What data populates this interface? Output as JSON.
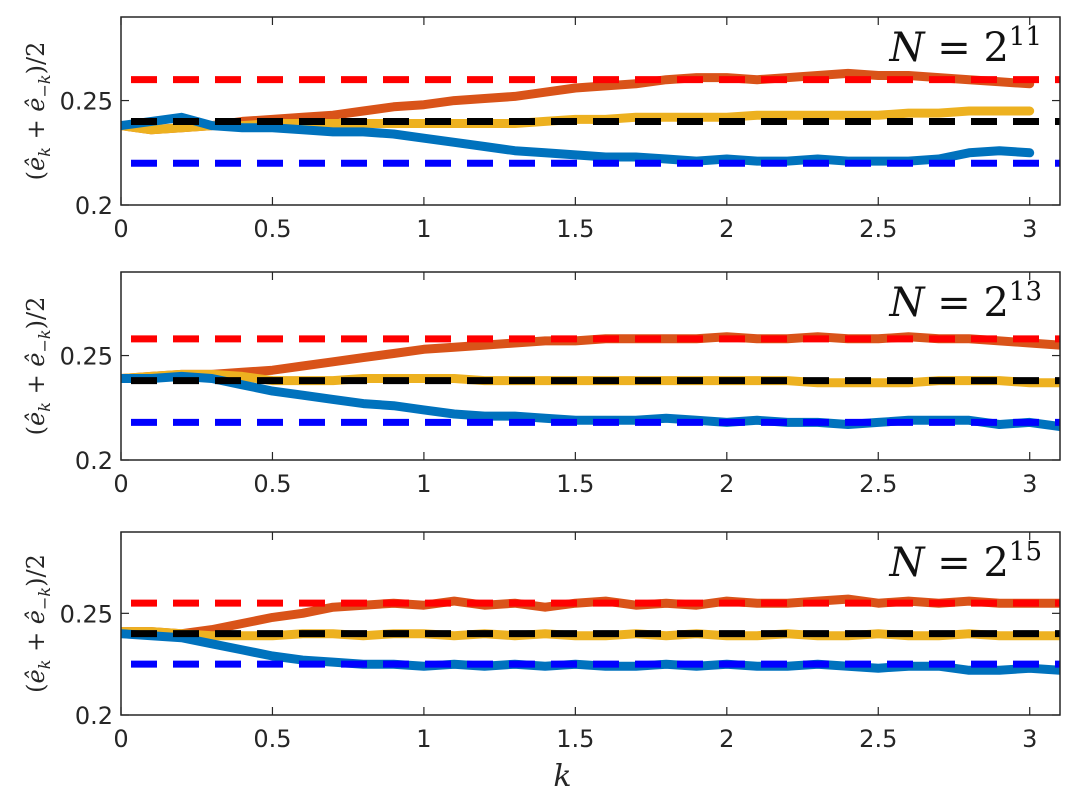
{
  "chart_data": [
    {
      "type": "line",
      "annotation": {
        "var": "N",
        "eq": " = ",
        "base": "2",
        "exp": "11"
      },
      "ylabel": "(ê_k + ê_{-k})/2",
      "xlabel": "",
      "xlim": [
        0,
        3.1
      ],
      "ylim": [
        0.2,
        0.29
      ],
      "xticks": [
        0,
        0.5,
        1,
        1.5,
        2,
        2.5,
        3
      ],
      "xtick_labels": [
        "0",
        "0.5",
        "1",
        "1.5",
        "2",
        "2.5",
        "3"
      ],
      "yticks": [
        0.2,
        0.25
      ],
      "ytick_labels": [
        "0.2",
        "0.25"
      ],
      "reference_lines": [
        {
          "name": "red-dashed",
          "y": 0.26,
          "color": "#ff0000"
        },
        {
          "name": "black-dashed",
          "y": 0.24,
          "color": "#000000"
        },
        {
          "name": "blue-dashed",
          "y": 0.22,
          "color": "#0000ff"
        }
      ],
      "series": [
        {
          "name": "orange",
          "color": "#d95319",
          "x": [
            0.0,
            0.1,
            0.2,
            0.3,
            0.4,
            0.5,
            0.6,
            0.7,
            0.8,
            0.9,
            1.0,
            1.1,
            1.2,
            1.3,
            1.4,
            1.5,
            1.6,
            1.7,
            1.8,
            1.9,
            2.0,
            2.1,
            2.2,
            2.3,
            2.4,
            2.5,
            2.6,
            2.7,
            2.8,
            2.9,
            3.0
          ],
          "values": [
            0.238,
            0.236,
            0.237,
            0.238,
            0.24,
            0.241,
            0.242,
            0.243,
            0.245,
            0.247,
            0.248,
            0.25,
            0.251,
            0.252,
            0.254,
            0.256,
            0.257,
            0.258,
            0.26,
            0.261,
            0.261,
            0.26,
            0.261,
            0.262,
            0.263,
            0.262,
            0.262,
            0.261,
            0.26,
            0.259,
            0.258
          ]
        },
        {
          "name": "yellow",
          "color": "#edb120",
          "x": [
            0.0,
            0.1,
            0.2,
            0.3,
            0.4,
            0.5,
            0.6,
            0.7,
            0.8,
            0.9,
            1.0,
            1.1,
            1.2,
            1.3,
            1.4,
            1.5,
            1.6,
            1.7,
            1.8,
            1.9,
            2.0,
            2.1,
            2.2,
            2.3,
            2.4,
            2.5,
            2.6,
            2.7,
            2.8,
            2.9,
            3.0
          ],
          "values": [
            0.238,
            0.236,
            0.237,
            0.238,
            0.238,
            0.239,
            0.239,
            0.239,
            0.239,
            0.239,
            0.239,
            0.239,
            0.239,
            0.239,
            0.24,
            0.241,
            0.241,
            0.242,
            0.242,
            0.242,
            0.242,
            0.243,
            0.243,
            0.243,
            0.243,
            0.243,
            0.244,
            0.244,
            0.245,
            0.245,
            0.245
          ]
        },
        {
          "name": "blue",
          "color": "#0072bd",
          "x": [
            0.0,
            0.1,
            0.2,
            0.3,
            0.4,
            0.5,
            0.6,
            0.7,
            0.8,
            0.9,
            1.0,
            1.1,
            1.2,
            1.3,
            1.4,
            1.5,
            1.6,
            1.7,
            1.8,
            1.9,
            2.0,
            2.1,
            2.2,
            2.3,
            2.4,
            2.5,
            2.6,
            2.7,
            2.8,
            2.9,
            3.0
          ],
          "values": [
            0.238,
            0.24,
            0.242,
            0.238,
            0.237,
            0.237,
            0.236,
            0.235,
            0.235,
            0.234,
            0.232,
            0.23,
            0.228,
            0.226,
            0.225,
            0.224,
            0.223,
            0.223,
            0.222,
            0.221,
            0.222,
            0.221,
            0.221,
            0.222,
            0.221,
            0.221,
            0.221,
            0.222,
            0.225,
            0.226,
            0.225
          ]
        }
      ]
    },
    {
      "type": "line",
      "annotation": {
        "var": "N",
        "eq": " = ",
        "base": "2",
        "exp": "13"
      },
      "ylabel": "(ê_k + ê_{-k})/2",
      "xlabel": "",
      "xlim": [
        0,
        3.1
      ],
      "ylim": [
        0.2,
        0.29
      ],
      "xticks": [
        0,
        0.5,
        1,
        1.5,
        2,
        2.5,
        3
      ],
      "xtick_labels": [
        "0",
        "0.5",
        "1",
        "1.5",
        "2",
        "2.5",
        "3"
      ],
      "yticks": [
        0.2,
        0.25
      ],
      "ytick_labels": [
        "0.2",
        "0.25"
      ],
      "reference_lines": [
        {
          "name": "red-dashed",
          "y": 0.258,
          "color": "#ff0000"
        },
        {
          "name": "black-dashed",
          "y": 0.238,
          "color": "#000000"
        },
        {
          "name": "blue-dashed",
          "y": 0.218,
          "color": "#0000ff"
        }
      ],
      "series": [
        {
          "name": "orange",
          "color": "#d95319",
          "x": [
            0.0,
            0.1,
            0.2,
            0.3,
            0.4,
            0.5,
            0.6,
            0.7,
            0.8,
            0.9,
            1.0,
            1.1,
            1.2,
            1.3,
            1.4,
            1.5,
            1.6,
            1.7,
            1.8,
            1.9,
            2.0,
            2.1,
            2.2,
            2.3,
            2.4,
            2.5,
            2.6,
            2.7,
            2.8,
            2.9,
            3.0,
            3.1
          ],
          "values": [
            0.239,
            0.24,
            0.241,
            0.241,
            0.242,
            0.243,
            0.245,
            0.247,
            0.249,
            0.251,
            0.253,
            0.254,
            0.255,
            0.256,
            0.257,
            0.257,
            0.258,
            0.258,
            0.258,
            0.258,
            0.259,
            0.258,
            0.258,
            0.259,
            0.258,
            0.258,
            0.259,
            0.258,
            0.258,
            0.257,
            0.256,
            0.255
          ]
        },
        {
          "name": "yellow",
          "color": "#edb120",
          "x": [
            0.0,
            0.1,
            0.2,
            0.3,
            0.4,
            0.5,
            0.6,
            0.7,
            0.8,
            0.9,
            1.0,
            1.1,
            1.2,
            1.3,
            1.4,
            1.5,
            1.6,
            1.7,
            1.8,
            1.9,
            2.0,
            2.1,
            2.2,
            2.3,
            2.4,
            2.5,
            2.6,
            2.7,
            2.8,
            2.9,
            3.0,
            3.1
          ],
          "values": [
            0.239,
            0.24,
            0.241,
            0.241,
            0.24,
            0.238,
            0.238,
            0.238,
            0.239,
            0.239,
            0.239,
            0.239,
            0.238,
            0.238,
            0.238,
            0.238,
            0.238,
            0.238,
            0.238,
            0.238,
            0.238,
            0.238,
            0.238,
            0.237,
            0.237,
            0.237,
            0.237,
            0.238,
            0.238,
            0.238,
            0.237,
            0.237
          ]
        },
        {
          "name": "blue",
          "color": "#0072bd",
          "x": [
            0.0,
            0.1,
            0.2,
            0.3,
            0.4,
            0.5,
            0.6,
            0.7,
            0.8,
            0.9,
            1.0,
            1.1,
            1.2,
            1.3,
            1.4,
            1.5,
            1.6,
            1.7,
            1.8,
            1.9,
            2.0,
            2.1,
            2.2,
            2.3,
            2.4,
            2.5,
            2.6,
            2.7,
            2.8,
            2.9,
            3.0,
            3.1
          ],
          "values": [
            0.239,
            0.239,
            0.24,
            0.239,
            0.236,
            0.233,
            0.231,
            0.229,
            0.227,
            0.226,
            0.224,
            0.222,
            0.221,
            0.221,
            0.22,
            0.219,
            0.219,
            0.219,
            0.22,
            0.219,
            0.218,
            0.219,
            0.218,
            0.218,
            0.217,
            0.218,
            0.219,
            0.219,
            0.219,
            0.217,
            0.218,
            0.216
          ]
        }
      ]
    },
    {
      "type": "line",
      "annotation": {
        "var": "N",
        "eq": " = ",
        "base": "2",
        "exp": "15"
      },
      "ylabel": "(ê_k + ê_{-k})/2",
      "xlabel": "k",
      "xlim": [
        0,
        3.1
      ],
      "ylim": [
        0.2,
        0.29
      ],
      "xticks": [
        0,
        0.5,
        1,
        1.5,
        2,
        2.5,
        3
      ],
      "xtick_labels": [
        "0",
        "0.5",
        "1",
        "1.5",
        "2",
        "2.5",
        "3"
      ],
      "yticks": [
        0.2,
        0.25
      ],
      "ytick_labels": [
        "0.2",
        "0.25"
      ],
      "reference_lines": [
        {
          "name": "red-dashed",
          "y": 0.255,
          "color": "#ff0000"
        },
        {
          "name": "black-dashed",
          "y": 0.24,
          "color": "#000000"
        },
        {
          "name": "blue-dashed",
          "y": 0.225,
          "color": "#0000ff"
        }
      ],
      "series": [
        {
          "name": "orange",
          "color": "#d95319",
          "x": [
            0.0,
            0.1,
            0.2,
            0.3,
            0.4,
            0.5,
            0.6,
            0.7,
            0.8,
            0.9,
            1.0,
            1.1,
            1.2,
            1.3,
            1.4,
            1.5,
            1.6,
            1.7,
            1.8,
            1.9,
            2.0,
            2.1,
            2.2,
            2.3,
            2.4,
            2.5,
            2.6,
            2.7,
            2.8,
            2.9,
            3.0,
            3.1
          ],
          "values": [
            0.241,
            0.241,
            0.24,
            0.242,
            0.245,
            0.248,
            0.25,
            0.253,
            0.254,
            0.255,
            0.254,
            0.256,
            0.254,
            0.255,
            0.253,
            0.255,
            0.256,
            0.254,
            0.255,
            0.254,
            0.256,
            0.255,
            0.255,
            0.256,
            0.257,
            0.255,
            0.256,
            0.255,
            0.256,
            0.255,
            0.255,
            0.255
          ]
        },
        {
          "name": "yellow",
          "color": "#edb120",
          "x": [
            0.0,
            0.1,
            0.2,
            0.3,
            0.4,
            0.5,
            0.6,
            0.7,
            0.8,
            0.9,
            1.0,
            1.1,
            1.2,
            1.3,
            1.4,
            1.5,
            1.6,
            1.7,
            1.8,
            1.9,
            2.0,
            2.1,
            2.2,
            2.3,
            2.4,
            2.5,
            2.6,
            2.7,
            2.8,
            2.9,
            3.0,
            3.1
          ],
          "values": [
            0.241,
            0.241,
            0.24,
            0.239,
            0.239,
            0.239,
            0.24,
            0.24,
            0.239,
            0.24,
            0.24,
            0.239,
            0.24,
            0.239,
            0.24,
            0.239,
            0.239,
            0.24,
            0.239,
            0.24,
            0.239,
            0.239,
            0.24,
            0.239,
            0.239,
            0.24,
            0.239,
            0.239,
            0.24,
            0.239,
            0.239,
            0.239
          ]
        },
        {
          "name": "blue",
          "color": "#0072bd",
          "x": [
            0.0,
            0.1,
            0.2,
            0.3,
            0.4,
            0.5,
            0.6,
            0.7,
            0.8,
            0.9,
            1.0,
            1.1,
            1.2,
            1.3,
            1.4,
            1.5,
            1.6,
            1.7,
            1.8,
            1.9,
            2.0,
            2.1,
            2.2,
            2.3,
            2.4,
            2.5,
            2.6,
            2.7,
            2.8,
            2.9,
            3.0,
            3.1
          ],
          "values": [
            0.24,
            0.239,
            0.238,
            0.235,
            0.232,
            0.229,
            0.227,
            0.226,
            0.225,
            0.225,
            0.224,
            0.225,
            0.224,
            0.225,
            0.224,
            0.225,
            0.224,
            0.224,
            0.225,
            0.224,
            0.225,
            0.224,
            0.224,
            0.225,
            0.224,
            0.223,
            0.224,
            0.224,
            0.222,
            0.222,
            0.223,
            0.222
          ]
        }
      ]
    }
  ]
}
